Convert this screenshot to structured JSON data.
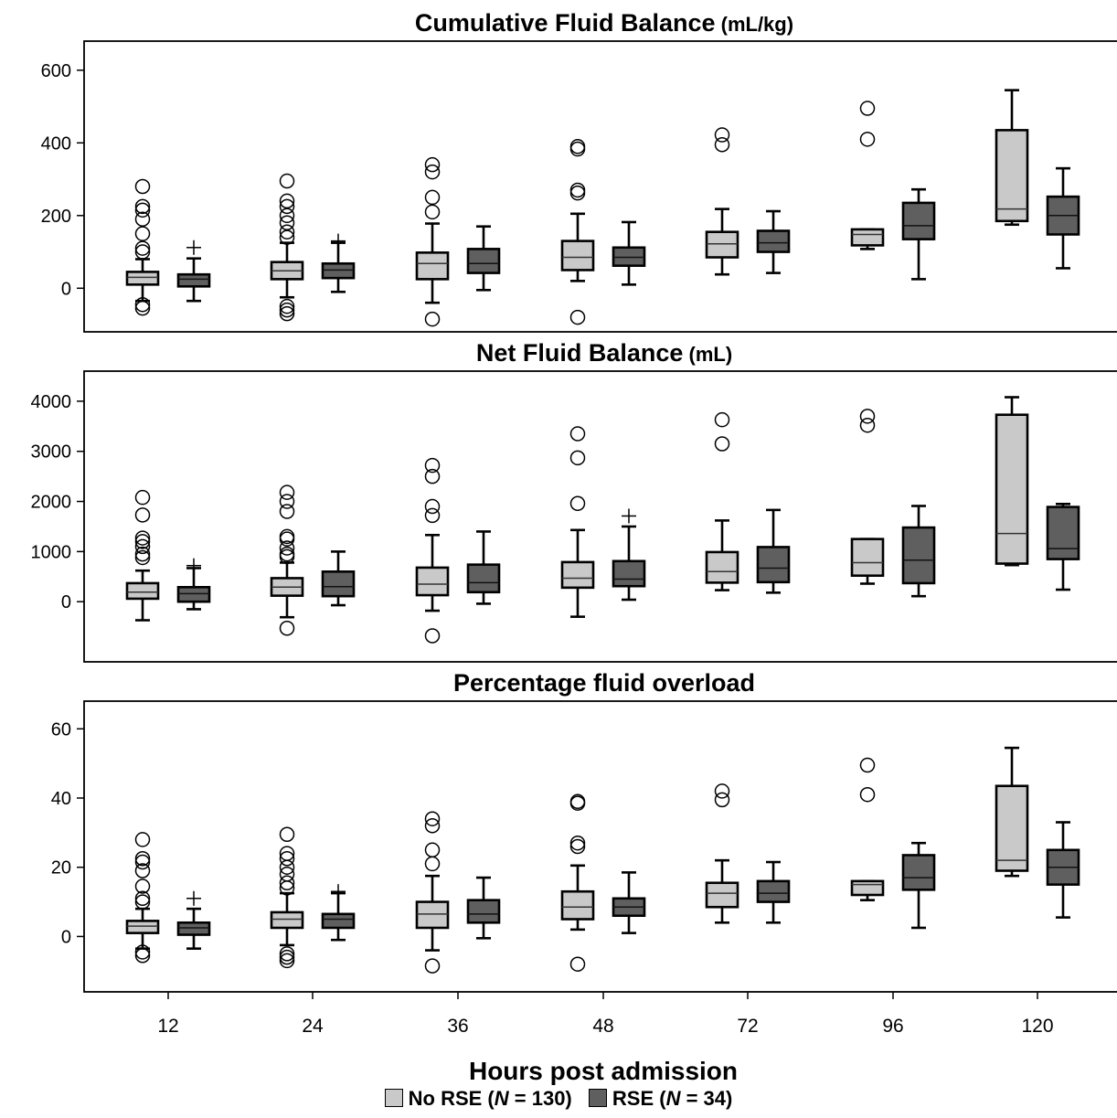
{
  "figure": {
    "xlabel": "Hours post admission",
    "legend": [
      {
        "label_main": "No RSE (",
        "label_n": "N",
        "label_rest": " = 130)",
        "color": "#c9c9c9"
      },
      {
        "label_main": "RSE (",
        "label_n": "N",
        "label_rest": " = 34)",
        "color": "#5f5f5f"
      }
    ]
  },
  "chart_data": [
    {
      "type": "box",
      "title": "Cumulative Fluid Balance",
      "title_unit": "(mL/kg)",
      "categories": [
        "12",
        "24",
        "36",
        "48",
        "72",
        "96",
        "120"
      ],
      "ylim": [
        -120,
        680
      ],
      "yticks": [
        0,
        200,
        400,
        600
      ],
      "series": [
        {
          "name": "No RSE",
          "color": "#c9c9c9",
          "boxes": [
            {
              "cat": "12",
              "q1": 10,
              "median": 30,
              "q3": 45,
              "whislo": -35,
              "whishi": 80,
              "outliers": [
                -55,
                -45,
                100,
                110,
                150,
                190,
                215,
                225,
                280
              ],
              "plus": []
            },
            {
              "cat": "24",
              "q1": 25,
              "median": 48,
              "q3": 72,
              "whislo": -25,
              "whishi": 125,
              "outliers": [
                -70,
                -60,
                -50,
                140,
                155,
                180,
                200,
                225,
                240,
                295
              ],
              "plus": []
            },
            {
              "cat": "36",
              "q1": 25,
              "median": 68,
              "q3": 98,
              "whislo": -40,
              "whishi": 178,
              "outliers": [
                -85,
                210,
                250,
                320,
                340
              ],
              "plus": []
            },
            {
              "cat": "48",
              "q1": 50,
              "median": 85,
              "q3": 130,
              "whislo": 20,
              "whishi": 205,
              "outliers": [
                -80,
                262,
                270,
                383,
                390
              ],
              "plus": []
            },
            {
              "cat": "72",
              "q1": 85,
              "median": 122,
              "q3": 155,
              "whislo": 38,
              "whishi": 218,
              "outliers": [
                395,
                422
              ],
              "plus": []
            },
            {
              "cat": "96",
              "q1": 118,
              "median": 148,
              "q3": 162,
              "whislo": 108,
              "whishi": 162,
              "outliers": [
                410,
                495
              ],
              "plus": []
            },
            {
              "cat": "120",
              "q1": 185,
              "median": 218,
              "q3": 435,
              "whislo": 175,
              "whishi": 545,
              "outliers": [],
              "plus": []
            }
          ]
        },
        {
          "name": "RSE",
          "color": "#5f5f5f",
          "boxes": [
            {
              "cat": "12",
              "q1": 5,
              "median": 25,
              "q3": 38,
              "whislo": -35,
              "whishi": 82,
              "outliers": [],
              "plus": [
                112
              ]
            },
            {
              "cat": "24",
              "q1": 28,
              "median": 50,
              "q3": 68,
              "whislo": -10,
              "whishi": 125,
              "outliers": [],
              "plus": [
                130
              ]
            },
            {
              "cat": "36",
              "q1": 42,
              "median": 68,
              "q3": 108,
              "whislo": -5,
              "whishi": 170,
              "outliers": [],
              "plus": []
            },
            {
              "cat": "48",
              "q1": 62,
              "median": 85,
              "q3": 112,
              "whislo": 10,
              "whishi": 182,
              "outliers": [],
              "plus": []
            },
            {
              "cat": "72",
              "q1": 100,
              "median": 125,
              "q3": 158,
              "whislo": 42,
              "whishi": 212,
              "outliers": [],
              "plus": []
            },
            {
              "cat": "96",
              "q1": 135,
              "median": 172,
              "q3": 235,
              "whislo": 25,
              "whishi": 272,
              "outliers": [],
              "plus": []
            },
            {
              "cat": "120",
              "q1": 148,
              "median": 200,
              "q3": 252,
              "whislo": 55,
              "whishi": 330,
              "outliers": [],
              "plus": []
            }
          ]
        }
      ]
    },
    {
      "type": "box",
      "title": "Net Fluid Balance",
      "title_unit": "(mL)",
      "categories": [
        "12",
        "24",
        "36",
        "48",
        "72",
        "96",
        "120"
      ],
      "ylim": [
        -1200,
        4600
      ],
      "yticks": [
        0,
        1000,
        2000,
        3000,
        4000
      ],
      "series": [
        {
          "name": "No RSE",
          "color": "#c9c9c9",
          "boxes": [
            {
              "cat": "12",
              "q1": 60,
              "median": 190,
              "q3": 370,
              "whislo": -370,
              "whishi": 620,
              "outliers": [
                880,
                950,
                1100,
                1200,
                1270,
                1730,
                2080
              ],
              "plus": []
            },
            {
              "cat": "24",
              "q1": 120,
              "median": 290,
              "q3": 470,
              "whislo": -310,
              "whishi": 780,
              "outliers": [
                -530,
                900,
                950,
                1070,
                1250,
                1300,
                1800,
                2000,
                2180
              ],
              "plus": []
            },
            {
              "cat": "36",
              "q1": 130,
              "median": 350,
              "q3": 680,
              "whislo": -180,
              "whishi": 1330,
              "outliers": [
                -680,
                1720,
                1900,
                2500,
                2720
              ],
              "plus": []
            },
            {
              "cat": "48",
              "q1": 280,
              "median": 470,
              "q3": 790,
              "whislo": -300,
              "whishi": 1430,
              "outliers": [
                1960,
                2870,
                3350
              ],
              "plus": []
            },
            {
              "cat": "72",
              "q1": 380,
              "median": 600,
              "q3": 990,
              "whislo": 230,
              "whishi": 1620,
              "outliers": [
                3150,
                3630
              ],
              "plus": []
            },
            {
              "cat": "96",
              "q1": 520,
              "median": 780,
              "q3": 1250,
              "whislo": 360,
              "whishi": 1250,
              "outliers": [
                3520,
                3700
              ],
              "plus": []
            },
            {
              "cat": "120",
              "q1": 760,
              "median": 1360,
              "q3": 3730,
              "whislo": 730,
              "whishi": 4080,
              "outliers": [],
              "plus": []
            }
          ]
        },
        {
          "name": "RSE",
          "color": "#5f5f5f",
          "boxes": [
            {
              "cat": "12",
              "q1": 0,
              "median": 160,
              "q3": 290,
              "whislo": -150,
              "whishi": 670,
              "outliers": [],
              "plus": [
                720
              ]
            },
            {
              "cat": "24",
              "q1": 110,
              "median": 300,
              "q3": 600,
              "whislo": -70,
              "whishi": 1000,
              "outliers": [],
              "plus": []
            },
            {
              "cat": "36",
              "q1": 190,
              "median": 380,
              "q3": 740,
              "whislo": -40,
              "whishi": 1400,
              "outliers": [],
              "plus": []
            },
            {
              "cat": "48",
              "q1": 310,
              "median": 450,
              "q3": 810,
              "whislo": 40,
              "whishi": 1500,
              "outliers": [],
              "plus": [
                1710
              ]
            },
            {
              "cat": "72",
              "q1": 390,
              "median": 670,
              "q3": 1090,
              "whislo": 180,
              "whishi": 1830,
              "outliers": [],
              "plus": []
            },
            {
              "cat": "96",
              "q1": 370,
              "median": 830,
              "q3": 1480,
              "whislo": 110,
              "whishi": 1910,
              "outliers": [],
              "plus": []
            },
            {
              "cat": "120",
              "q1": 850,
              "median": 1060,
              "q3": 1890,
              "whislo": 240,
              "whishi": 1950,
              "outliers": [],
              "plus": []
            }
          ]
        }
      ]
    },
    {
      "type": "box",
      "title": "Percentage fluid overload",
      "title_unit": "",
      "categories": [
        "12",
        "24",
        "36",
        "48",
        "72",
        "96",
        "120"
      ],
      "ylim": [
        -16,
        68
      ],
      "yticks": [
        0,
        20,
        40,
        60
      ],
      "series": [
        {
          "name": "No RSE",
          "color": "#c9c9c9",
          "boxes": [
            {
              "cat": "12",
              "q1": 1,
              "median": 3,
              "q3": 4.5,
              "whislo": -3.5,
              "whishi": 8,
              "outliers": [
                -5.5,
                -4.5,
                10,
                11,
                14.5,
                19,
                21.5,
                22.5,
                28
              ],
              "plus": []
            },
            {
              "cat": "24",
              "q1": 2.5,
              "median": 5,
              "q3": 7,
              "whislo": -2.5,
              "whishi": 12.5,
              "outliers": [
                -7,
                -6,
                -5,
                14,
                15.5,
                18,
                20,
                22.5,
                24,
                29.5
              ],
              "plus": []
            },
            {
              "cat": "36",
              "q1": 2.5,
              "median": 6.5,
              "q3": 10,
              "whislo": -4,
              "whishi": 17.5,
              "outliers": [
                -8.5,
                21,
                25,
                32,
                34
              ],
              "plus": []
            },
            {
              "cat": "48",
              "q1": 5,
              "median": 8.5,
              "q3": 13,
              "whislo": 2,
              "whishi": 20.5,
              "outliers": [
                -8,
                26,
                27,
                38.5,
                39
              ],
              "plus": []
            },
            {
              "cat": "72",
              "q1": 8.5,
              "median": 12.5,
              "q3": 15.5,
              "whislo": 4,
              "whishi": 22,
              "outliers": [
                39.5,
                42
              ],
              "plus": []
            },
            {
              "cat": "96",
              "q1": 12,
              "median": 15,
              "q3": 16,
              "whislo": 10.5,
              "whishi": 16,
              "outliers": [
                41,
                49.5
              ],
              "plus": []
            },
            {
              "cat": "120",
              "q1": 19,
              "median": 22,
              "q3": 43.5,
              "whislo": 17.5,
              "whishi": 54.5,
              "outliers": [],
              "plus": []
            }
          ]
        },
        {
          "name": "RSE",
          "color": "#5f5f5f",
          "boxes": [
            {
              "cat": "12",
              "q1": 0.5,
              "median": 2.5,
              "q3": 4,
              "whislo": -3.5,
              "whishi": 8,
              "outliers": [],
              "plus": [
                11
              ]
            },
            {
              "cat": "24",
              "q1": 2.5,
              "median": 5,
              "q3": 6.5,
              "whislo": -1,
              "whishi": 12.5,
              "outliers": [],
              "plus": [
                13
              ]
            },
            {
              "cat": "36",
              "q1": 4,
              "median": 6.5,
              "q3": 10.5,
              "whislo": -0.5,
              "whishi": 17,
              "outliers": [],
              "plus": []
            },
            {
              "cat": "48",
              "q1": 6,
              "median": 8.5,
              "q3": 11,
              "whislo": 1,
              "whishi": 18.5,
              "outliers": [],
              "plus": []
            },
            {
              "cat": "72",
              "q1": 10,
              "median": 12.5,
              "q3": 16,
              "whislo": 4,
              "whishi": 21.5,
              "outliers": [],
              "plus": []
            },
            {
              "cat": "96",
              "q1": 13.5,
              "median": 17,
              "q3": 23.5,
              "whislo": 2.5,
              "whishi": 27,
              "outliers": [],
              "plus": []
            },
            {
              "cat": "120",
              "q1": 15,
              "median": 20,
              "q3": 25,
              "whislo": 5.5,
              "whishi": 33,
              "outliers": [],
              "plus": []
            }
          ]
        }
      ]
    }
  ]
}
